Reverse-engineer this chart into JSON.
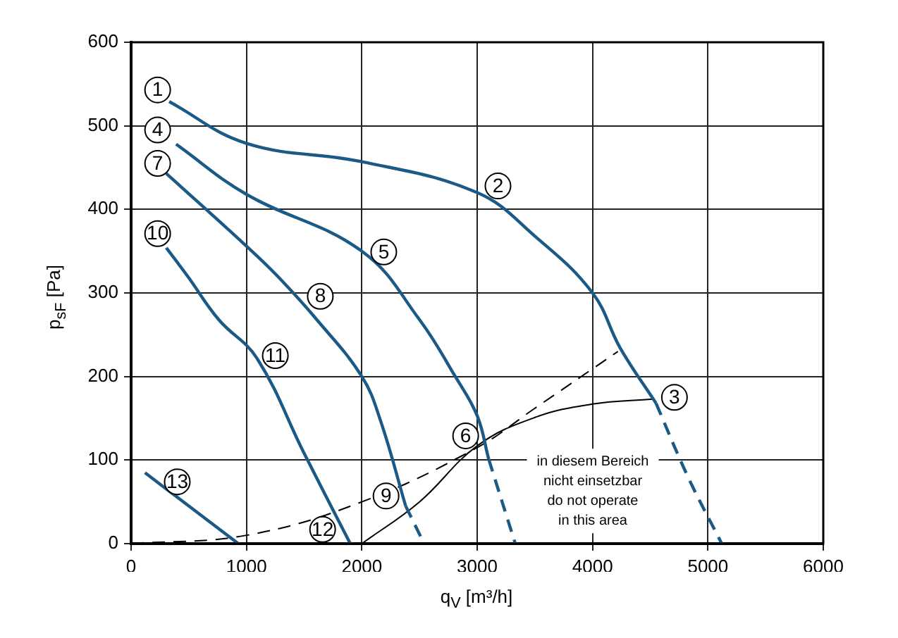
{
  "chart_data": {
    "type": "line",
    "xlabel": "q$_{V}$ [m³/h]",
    "ylabel": "p$_{sF}$ [Pa]",
    "xlim": [
      0,
      6000
    ],
    "xticks": [
      0,
      1000,
      2000,
      3000,
      4000,
      5000,
      6000
    ],
    "ylim": [
      0,
      600
    ],
    "yticks": [
      0,
      100,
      200,
      300,
      400,
      500,
      600
    ],
    "grid": true,
    "legend": false,
    "marker": "none",
    "series": [
      {
        "color": "#1b5a87",
        "line_style": "solid",
        "x": [
          330,
          1000,
          2000,
          3000,
          3500,
          4000,
          4240,
          4550
        ],
        "values": [
          529,
          479,
          457,
          420,
          368,
          300,
          234,
          168
        ]
      },
      {
        "color": "#1b5a87",
        "line_style": "dashed",
        "x": [
          4550,
          4830,
          5120
        ],
        "values": [
          168,
          79,
          0
        ]
      },
      {
        "color": "#1b5a87",
        "line_style": "solid",
        "x": [
          390,
          1000,
          2000,
          2500,
          2810,
          3000,
          3100
        ],
        "values": [
          478,
          418,
          350,
          268,
          200,
          153,
          101
        ]
      },
      {
        "color": "#1b5a87",
        "line_style": "dashed",
        "x": [
          3100,
          3330
        ],
        "values": [
          101,
          0
        ]
      },
      {
        "color": "#1b5a87",
        "line_style": "solid",
        "x": [
          305,
          1000,
          1270,
          1610,
          2000,
          2160,
          2380
        ],
        "values": [
          443,
          356,
          320,
          268,
          200,
          148,
          45
        ]
      },
      {
        "color": "#1b5a87",
        "line_style": "dashed",
        "x": [
          2380,
          2540
        ],
        "values": [
          45,
          0
        ]
      },
      {
        "color": "#1b5a87",
        "line_style": "solid",
        "x": [
          305,
          490,
          760,
          1090,
          1500,
          1900
        ],
        "values": [
          354,
          320,
          268,
          222,
          108,
          0
        ]
      },
      {
        "color": "#1b5a87",
        "line_style": "solid",
        "x": [
          120,
          500,
          930
        ],
        "values": [
          85,
          45,
          0
        ]
      },
      {
        "color": "#000000",
        "line_style": "dashed",
        "x": [
          0,
          1000,
          2000,
          3000,
          3500,
          4220
        ],
        "values": [
          0,
          10,
          50,
          115,
          162,
          230
        ]
      },
      {
        "color": "#000000",
        "line_style": "solid",
        "x": [
          2000,
          2500,
          3000,
          3500,
          4000,
          4520
        ],
        "values": [
          0,
          50,
          117,
          151,
          167,
          173
        ]
      }
    ],
    "annotations": [
      {
        "text": "1",
        "x": 230,
        "y": 543
      },
      {
        "text": "2",
        "x": 3180,
        "y": 428
      },
      {
        "text": "3",
        "x": 4710,
        "y": 175
      },
      {
        "text": "4",
        "x": 230,
        "y": 495
      },
      {
        "text": "5",
        "x": 2190,
        "y": 349
      },
      {
        "text": "6",
        "x": 2900,
        "y": 129
      },
      {
        "text": "7",
        "x": 230,
        "y": 455
      },
      {
        "text": "8",
        "x": 1640,
        "y": 296
      },
      {
        "text": "9",
        "x": 2210,
        "y": 57
      },
      {
        "text": "10",
        "x": 230,
        "y": 371
      },
      {
        "text": "11",
        "x": 1250,
        "y": 225
      },
      {
        "text": "12",
        "x": 1660,
        "y": 17
      },
      {
        "text": "13",
        "x": 400,
        "y": 74
      },
      "in diesem Bereich\nnicht einsetzbar\ndo not operate\nin this area"
    ]
  }
}
